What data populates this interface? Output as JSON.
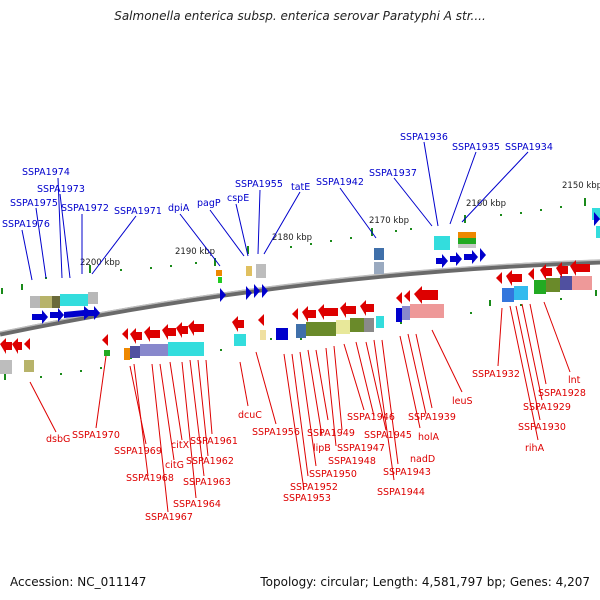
{
  "title": "Salmonella enterica subsp. enterica serovar Paratyphi A str....",
  "footer": {
    "accession": "Accession: NC_011147",
    "summary": "Topology: circular; Length: 4,581,797 bp; Genes: 4,207"
  },
  "colors": {
    "forward": "#0000cc",
    "reverse": "#cc0000",
    "backbone": "#888888"
  },
  "tick_labels": [
    "2200 kbp",
    "2190 kbp",
    "2180 kbp",
    "2170 kbp",
    "2160 kbp",
    "2150 kbp"
  ],
  "forward_gene_labels": [
    "SSPA1974",
    "SSPA1973",
    "SSPA1975",
    "SSPA1972",
    "SSPA1976",
    "SSPA1971",
    "dpiA",
    "pagP",
    "cspE",
    "SSPA1955",
    "tatE",
    "SSPA1942",
    "SSPA1937",
    "SSPA1936",
    "SSPA1935",
    "SSPA1934"
  ],
  "reverse_gene_labels": [
    "dsbG",
    "SSPA1970",
    "SSPA1969",
    "SSPA1968",
    "citG",
    "citX",
    "SSPA1961",
    "SSPA1962",
    "SSPA1963",
    "SSPA1964",
    "SSPA1967",
    "dcuC",
    "SSPA1956",
    "lipB",
    "SSPA1949",
    "SSPA1948",
    "SSPA1950",
    "SSPA1952",
    "SSPA1953",
    "SSPA1946",
    "SSPA1947",
    "SSPA1945",
    "SSPA1939",
    "holA",
    "nadD",
    "SSPA1943",
    "SSPA1944",
    "leuS",
    "SSPA1932",
    "lnt",
    "SSPA1928",
    "SSPA1929",
    "SSPA1930",
    "rihA"
  ]
}
